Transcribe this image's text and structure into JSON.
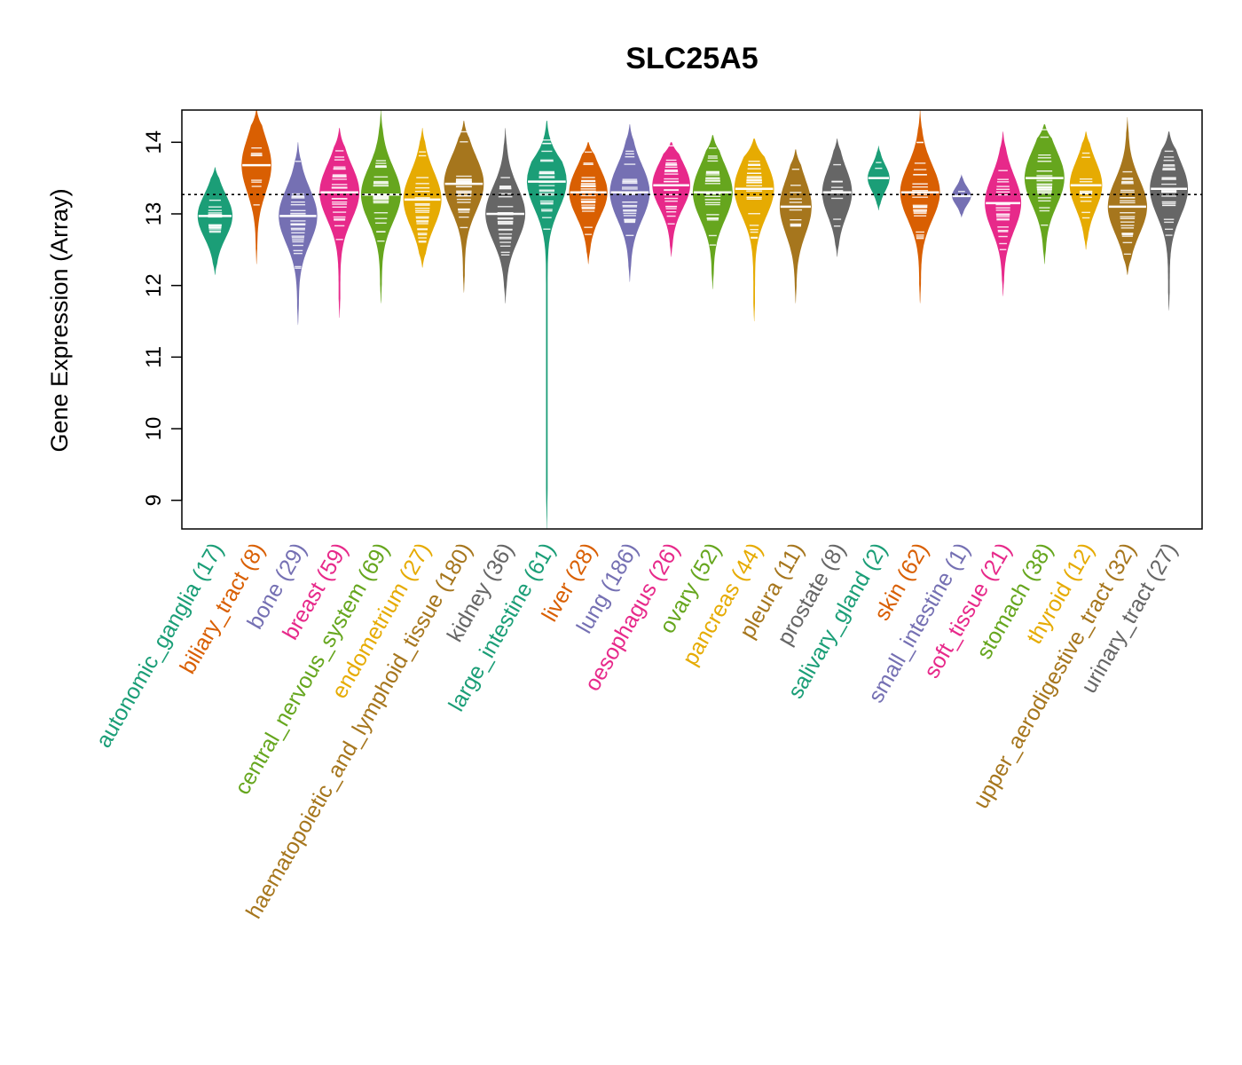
{
  "chart_data": {
    "type": "beanplot",
    "title": "SLC25A5",
    "xlabel": "",
    "ylabel": "Gene Expression (Array)",
    "ylim": [
      8.6,
      14.45
    ],
    "yticks": [
      "9",
      "10",
      "11",
      "12",
      "13",
      "14"
    ],
    "reference_line": 13.27,
    "grid": false,
    "legend": "none",
    "categories": [
      {
        "name": "autonomic_ganglia",
        "n": 17,
        "label": "autonomic_ganglia (17)",
        "color": "#1B9E77",
        "min": 12.15,
        "max": 13.65,
        "median": 12.97
      },
      {
        "name": "biliary_tract",
        "n": 8,
        "label": "biliary_tract (8)",
        "color": "#D95F02",
        "min": 12.3,
        "max": 14.45,
        "median": 13.68
      },
      {
        "name": "bone",
        "n": 29,
        "label": "bone (29)",
        "color": "#7570B3",
        "min": 11.45,
        "max": 14.0,
        "median": 12.97
      },
      {
        "name": "breast",
        "n": 59,
        "label": "breast (59)",
        "color": "#E7298A",
        "min": 11.55,
        "max": 14.2,
        "median": 13.3
      },
      {
        "name": "central_nervous_system",
        "n": 69,
        "label": "central_nervous_system (69)",
        "color": "#66A61E",
        "min": 11.75,
        "max": 14.45,
        "median": 13.27
      },
      {
        "name": "endometrium",
        "n": 27,
        "label": "endometrium (27)",
        "color": "#E6AB02",
        "min": 12.25,
        "max": 14.2,
        "median": 13.2
      },
      {
        "name": "haematopoietic_and_lymphoid_tissue",
        "n": 180,
        "label": "haematopoietic_and_lymphoid_tissue (180)",
        "color": "#A6761D",
        "min": 11.9,
        "max": 14.3,
        "median": 13.42
      },
      {
        "name": "kidney",
        "n": 36,
        "label": "kidney (36)",
        "color": "#666666",
        "min": 11.75,
        "max": 14.2,
        "median": 13.0
      },
      {
        "name": "large_intestine",
        "n": 61,
        "label": "large_intestine (61)",
        "color": "#1B9E77",
        "min": 8.6,
        "max": 14.3,
        "median": 13.45
      },
      {
        "name": "liver",
        "n": 28,
        "label": "liver (28)",
        "color": "#D95F02",
        "min": 12.3,
        "max": 14.0,
        "median": 13.3
      },
      {
        "name": "lung",
        "n": 186,
        "label": "lung (186)",
        "color": "#7570B3",
        "min": 12.05,
        "max": 14.25,
        "median": 13.3
      },
      {
        "name": "oesophagus",
        "n": 26,
        "label": "oesophagus (26)",
        "color": "#E7298A",
        "min": 12.4,
        "max": 14.0,
        "median": 13.4
      },
      {
        "name": "ovary",
        "n": 52,
        "label": "ovary (52)",
        "color": "#66A61E",
        "min": 11.95,
        "max": 14.1,
        "median": 13.3
      },
      {
        "name": "pancreas",
        "n": 44,
        "label": "pancreas (44)",
        "color": "#E6AB02",
        "min": 11.5,
        "max": 14.05,
        "median": 13.35
      },
      {
        "name": "pleura",
        "n": 11,
        "label": "pleura (11)",
        "color": "#A6761D",
        "min": 11.75,
        "max": 13.9,
        "median": 13.1
      },
      {
        "name": "prostate",
        "n": 8,
        "label": "prostate (8)",
        "color": "#666666",
        "min": 12.4,
        "max": 14.05,
        "median": 13.3
      },
      {
        "name": "salivary_gland",
        "n": 2,
        "label": "salivary_gland (2)",
        "color": "#1B9E77",
        "min": 13.05,
        "max": 13.95,
        "median": 13.5
      },
      {
        "name": "skin",
        "n": 62,
        "label": "skin (62)",
        "color": "#D95F02",
        "min": 11.75,
        "max": 14.45,
        "median": 13.3
      },
      {
        "name": "small_intestine",
        "n": 1,
        "label": "small_intestine (1)",
        "color": "#7570B3",
        "min": 12.95,
        "max": 13.55,
        "median": 13.25
      },
      {
        "name": "soft_tissue",
        "n": 21,
        "label": "soft_tissue (21)",
        "color": "#E7298A",
        "min": 11.85,
        "max": 14.15,
        "median": 13.15
      },
      {
        "name": "stomach",
        "n": 38,
        "label": "stomach (38)",
        "color": "#66A61E",
        "min": 12.3,
        "max": 14.25,
        "median": 13.5
      },
      {
        "name": "thyroid",
        "n": 12,
        "label": "thyroid (12)",
        "color": "#E6AB02",
        "min": 12.5,
        "max": 14.15,
        "median": 13.4
      },
      {
        "name": "upper_aerodigestive_tract",
        "n": 32,
        "label": "upper_aerodigestive_tract (32)",
        "color": "#A6761D",
        "min": 12.15,
        "max": 14.35,
        "median": 13.1
      },
      {
        "name": "urinary_tract",
        "n": 27,
        "label": "urinary_tract (27)",
        "color": "#666666",
        "min": 11.65,
        "max": 14.15,
        "median": 13.35
      }
    ]
  }
}
